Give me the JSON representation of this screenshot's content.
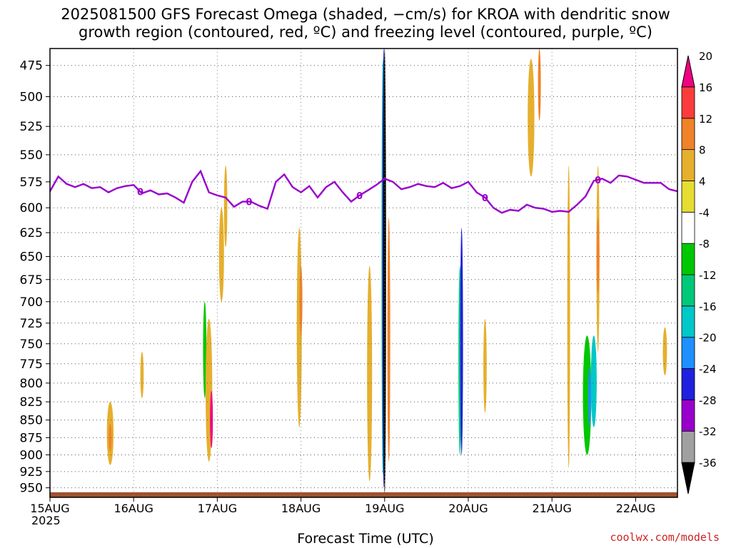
{
  "title_line1": "2025081500 GFS Forecast Omega (shaded, −cm/s) for KROA with dendritic snow",
  "title_line2": "growth region (contoured, red, ºC) and freezing level (contoured, purple, ºC)",
  "credit": "coolwx.com/models",
  "colors": {
    "freezing_line": "#9900cc",
    "terrain": "#a0522d",
    "frame": "#000000",
    "grid": "#555555"
  },
  "chart_data": {
    "type": "heatmap",
    "title": "2025081500 GFS Forecast Omega (shaded, −cm/s) for KROA with dendritic snow growth region (contoured, red, ºC) and freezing level (contoured, purple, ºC)",
    "xlabel": "Forecast Time (UTC)",
    "year_label": "2025",
    "x_ticks": [
      "15AUG",
      "16AUG",
      "17AUG",
      "18AUG",
      "19AUG",
      "20AUG",
      "21AUG",
      "22AUG"
    ],
    "x_range_days": [
      0,
      7.5
    ],
    "y_ticks": [
      475,
      500,
      525,
      550,
      575,
      600,
      625,
      650,
      675,
      700,
      725,
      750,
      775,
      800,
      825,
      850,
      875,
      900,
      925,
      950
    ],
    "y_range_hpa": [
      462,
      965
    ],
    "y_scale": "log-pressure (inverted)",
    "grid": true,
    "colorbar": {
      "levels": [
        -36,
        -32,
        -28,
        -24,
        -20,
        -16,
        -12,
        -8,
        -4,
        4,
        8,
        12,
        16,
        20
      ],
      "tick_labels": [
        "-36",
        "-32",
        "-28",
        "-24",
        "-20",
        "-16",
        "-12",
        "-8",
        "-4",
        "4",
        "8",
        "12",
        "16",
        "20"
      ],
      "colors": [
        "#000000",
        "#a0a0a0",
        "#9900cc",
        "#2020e0",
        "#1e90ff",
        "#00c8c8",
        "#00c878",
        "#00c800",
        "#ffffff",
        "#e6dc32",
        "#e6af2d",
        "#f08228",
        "#fa3c3c",
        "#f00082",
        "#e6dc32"
      ],
      "position": "right"
    },
    "freezing_level": {
      "label": "0",
      "label_positions_days": [
        1.08,
        2.38,
        3.7,
        5.2,
        6.55
      ],
      "x_days": [
        0,
        0.1,
        0.2,
        0.3,
        0.4,
        0.5,
        0.6,
        0.7,
        0.8,
        0.9,
        1.0,
        1.1,
        1.2,
        1.3,
        1.4,
        1.5,
        1.6,
        1.7,
        1.8,
        1.9,
        2.0,
        2.1,
        2.2,
        2.3,
        2.4,
        2.5,
        2.6,
        2.7,
        2.8,
        2.9,
        3.0,
        3.1,
        3.2,
        3.3,
        3.4,
        3.5,
        3.6,
        3.7,
        3.8,
        3.9,
        4.0,
        4.1,
        4.2,
        4.3,
        4.4,
        4.5,
        4.6,
        4.7,
        4.8,
        4.9,
        5.0,
        5.1,
        5.2,
        5.3,
        5.4,
        5.5,
        5.6,
        5.7,
        5.8,
        5.9,
        6.0,
        6.1,
        6.2,
        6.3,
        6.4,
        6.5,
        6.6,
        6.7,
        6.8,
        6.9,
        7.0,
        7.1,
        7.2,
        7.3,
        7.4,
        7.5
      ],
      "pressure_hpa": [
        584,
        570,
        577,
        580,
        577,
        581,
        580,
        585,
        581,
        579,
        578,
        586,
        583,
        587,
        586,
        590,
        595,
        575,
        565,
        585,
        588,
        590,
        599,
        594,
        594,
        598,
        601,
        575,
        568,
        580,
        585,
        579,
        590,
        580,
        575,
        585,
        594,
        588,
        583,
        578,
        572,
        575,
        582,
        580,
        577,
        579,
        580,
        576,
        581,
        579,
        575,
        585,
        590,
        600,
        605,
        602,
        603,
        597,
        600,
        601,
        604,
        603,
        604,
        597,
        589,
        574,
        572,
        576,
        569,
        570,
        573,
        576,
        576,
        576,
        582,
        584
      ]
    },
    "terrain_top_hpa": 957,
    "omega_features": [
      {
        "x": 0.72,
        "p": 870,
        "w": 0.04,
        "h": 45,
        "v": 5
      },
      {
        "x": 0.72,
        "p": 875,
        "w": 0.015,
        "h": 20,
        "v": 9
      },
      {
        "x": 1.12,
        "p": 745,
        "w": 0.01,
        "h": 35,
        "v": -6
      },
      {
        "x": 1.1,
        "p": 790,
        "w": 0.02,
        "h": 30,
        "v": 5
      },
      {
        "x": 1.85,
        "p": 780,
        "w": 0.045,
        "h": 120,
        "v": -6
      },
      {
        "x": 1.85,
        "p": 760,
        "w": 0.02,
        "h": 60,
        "v": -12
      },
      {
        "x": 1.9,
        "p": 815,
        "w": 0.04,
        "h": 95,
        "v": 6
      },
      {
        "x": 1.93,
        "p": 850,
        "w": 0.012,
        "h": 40,
        "v": 17
      },
      {
        "x": 2.05,
        "p": 650,
        "w": 0.03,
        "h": 50,
        "v": 5
      },
      {
        "x": 2.1,
        "p": 600,
        "w": 0.02,
        "h": 40,
        "v": 5
      },
      {
        "x": 2.98,
        "p": 740,
        "w": 0.03,
        "h": 120,
        "v": 6
      },
      {
        "x": 3.0,
        "p": 700,
        "w": 0.012,
        "h": 40,
        "v": 9
      },
      {
        "x": 2.9,
        "p": 560,
        "w": 0.04,
        "h": 50,
        "v": -6
      },
      {
        "x": 3.08,
        "p": 810,
        "w": 0.015,
        "h": 60,
        "v": -6
      },
      {
        "x": 3.82,
        "p": 800,
        "w": 0.03,
        "h": 140,
        "v": 6
      },
      {
        "x": 3.98,
        "p": 720,
        "w": 0.025,
        "h": 240,
        "v": -6
      },
      {
        "x": 3.98,
        "p": 700,
        "w": 0.016,
        "h": 230,
        "v": -14
      },
      {
        "x": 3.99,
        "p": 700,
        "w": 0.01,
        "h": 250,
        "v": -25
      },
      {
        "x": 4.0,
        "p": 700,
        "w": 0.006,
        "h": 260,
        "v": -37
      },
      {
        "x": 4.05,
        "p": 760,
        "w": 0.015,
        "h": 150,
        "v": 9
      },
      {
        "x": 4.9,
        "p": 800,
        "w": 0.03,
        "h": 160,
        "v": -6
      },
      {
        "x": 4.9,
        "p": 780,
        "w": 0.018,
        "h": 120,
        "v": -13
      },
      {
        "x": 4.92,
        "p": 760,
        "w": 0.008,
        "h": 140,
        "v": -28
      },
      {
        "x": 5.08,
        "p": 600,
        "w": 0.012,
        "h": 150,
        "v": -6
      },
      {
        "x": 5.5,
        "p": 760,
        "w": 0.01,
        "h": 60,
        "v": -6
      },
      {
        "x": 5.2,
        "p": 780,
        "w": 0.02,
        "h": 60,
        "v": 5
      },
      {
        "x": 5.75,
        "p": 520,
        "w": 0.04,
        "h": 50,
        "v": 5
      },
      {
        "x": 5.85,
        "p": 480,
        "w": 0.015,
        "h": 40,
        "v": 10
      },
      {
        "x": 6.02,
        "p": 760,
        "w": 0.012,
        "h": 200,
        "v": -6
      },
      {
        "x": 6.2,
        "p": 740,
        "w": 0.015,
        "h": 180,
        "v": 5
      },
      {
        "x": 6.42,
        "p": 820,
        "w": 0.05,
        "h": 80,
        "v": -10
      },
      {
        "x": 6.5,
        "p": 800,
        "w": 0.035,
        "h": 60,
        "v": -18
      },
      {
        "x": 6.45,
        "p": 820,
        "w": 0.012,
        "h": 40,
        "v": -22
      },
      {
        "x": 6.55,
        "p": 660,
        "w": 0.018,
        "h": 100,
        "v": 5
      },
      {
        "x": 6.55,
        "p": 650,
        "w": 0.01,
        "h": 40,
        "v": 11
      },
      {
        "x": 7.35,
        "p": 760,
        "w": 0.025,
        "h": 30,
        "v": 5
      }
    ]
  }
}
